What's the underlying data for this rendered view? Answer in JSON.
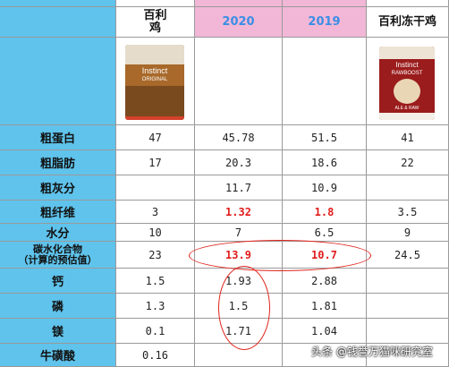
{
  "header": {
    "col1": "百利\n鸡",
    "col2": "2020",
    "col3": "2019",
    "col4": "百利冻干鸡"
  },
  "product1": {
    "brand": "Instinct",
    "sub": "ORIGINAL"
  },
  "product2": {
    "brand": "Instinct",
    "sub": "RAWBOOST",
    "line": "ALE & RAW"
  },
  "rows": [
    {
      "label": "粗蛋白",
      "v": [
        "47",
        "45.78",
        "51.5",
        "41"
      ]
    },
    {
      "label": "粗脂肪",
      "v": [
        "17",
        "20.3",
        "18.6",
        "22"
      ]
    },
    {
      "label": "粗灰分",
      "v": [
        "",
        "11.7",
        "10.9",
        ""
      ]
    },
    {
      "label": "粗纤维",
      "v": [
        "3",
        "1.32",
        "1.8",
        "3.5"
      ]
    },
    {
      "label": "水分",
      "v": [
        "10",
        "7",
        "6.5",
        "9"
      ]
    },
    {
      "label": "碳水化合物\n（计算的预估值）",
      "v": [
        "23",
        "13.9",
        "10.7",
        "24.5"
      ]
    },
    {
      "label": "钙",
      "v": [
        "1.5",
        "1.93",
        "2.88",
        ""
      ]
    },
    {
      "label": "磷",
      "v": [
        "1.3",
        "1.5",
        "1.81",
        ""
      ]
    },
    {
      "label": "镁",
      "v": [
        "0.1",
        "1.71",
        "1.04",
        ""
      ]
    },
    {
      "label": "牛磺酸",
      "v": [
        "0.16",
        "",
        "",
        ""
      ]
    }
  ],
  "watermark": "头条 @钱誉万猫咪研究室",
  "colors": {
    "header_blue": "#5fc3ec",
    "header_pink": "#f2b7d6",
    "highlight_red": "#e21b1b",
    "oval_red": "#e0231c"
  }
}
